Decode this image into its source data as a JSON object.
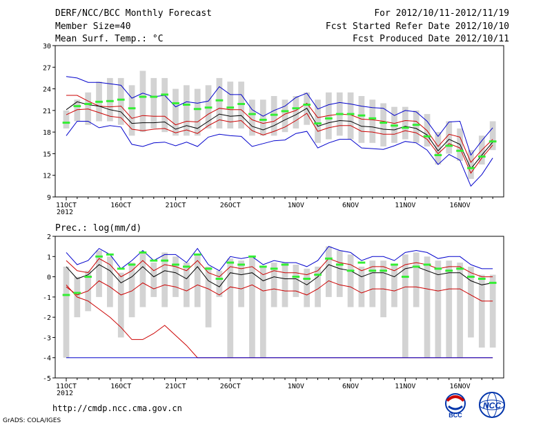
{
  "header": {
    "title": "DERF/NCC/BCC Monthly Forecast",
    "member_size": "Member Size=40",
    "variable": "Mean Surf. Temp.: °C",
    "period": "For 2012/10/11-2012/11/19",
    "fcst_started": "Fcst Started Refer Date 2012/10/10",
    "fcst_produced": "Fcst Produced Date 2012/10/11"
  },
  "footer": {
    "url": "http://cmdp.ncc.cma.gov.cn",
    "credit": "GrADS: COLA/IGES",
    "logo_bcc": "BCC",
    "logo_ncc": "NCC"
  },
  "colors": {
    "box": "#d3d3d3",
    "median": "#33ee33",
    "blue": "#0000cc",
    "red": "#cc0000",
    "black": "#000000"
  },
  "chart_data": [
    {
      "type": "line",
      "title": "Mean Surf. Temp.: °C",
      "x_tick_labels": [
        "11OCT",
        "16OCT",
        "21OCT",
        "26OCT",
        "1NOV",
        "6NOV",
        "11NOV",
        "16NOV"
      ],
      "x_tick_days": [
        0,
        5,
        10,
        15,
        21,
        26,
        31,
        36
      ],
      "year_label": "2012",
      "ylim": [
        9,
        30
      ],
      "y_ticks": [
        9,
        12,
        15,
        18,
        21,
        24,
        27,
        30
      ],
      "days": 40,
      "series": [
        {
          "name": "max",
          "color": "blue",
          "values": [
            25.7,
            25.5,
            24.9,
            24.9,
            24.7,
            24.5,
            22.7,
            23.4,
            22.9,
            23.1,
            21.5,
            22.2,
            22.0,
            22.3,
            24.3,
            23.2,
            23.2,
            21.1,
            20.2,
            21.0,
            21.6,
            22.8,
            23.4,
            21.2,
            21.8,
            22.1,
            21.9,
            21.6,
            21.4,
            21.3,
            20.3,
            21.0,
            20.8,
            19.5,
            17.4,
            19.4,
            19.5,
            14.8,
            16.8,
            18.6
          ]
        },
        {
          "name": "upper",
          "color": "red",
          "values": [
            23.1,
            23.1,
            22.3,
            21.6,
            21.5,
            21.6,
            19.9,
            20.3,
            20.2,
            20.2,
            19.0,
            19.5,
            19.4,
            20.5,
            21.3,
            21.1,
            21.1,
            19.7,
            19.2,
            19.5,
            20.5,
            21.0,
            22.0,
            20.0,
            20.3,
            20.5,
            20.4,
            19.8,
            19.7,
            19.5,
            19.2,
            19.6,
            19.5,
            18.2,
            16.0,
            17.7,
            17.3,
            13.8,
            15.5,
            17.0
          ]
        },
        {
          "name": "mean",
          "color": "black",
          "values": [
            21.1,
            22.2,
            21.8,
            21.6,
            21.1,
            20.8,
            19.2,
            19.3,
            19.3,
            19.4,
            18.4,
            18.9,
            18.5,
            19.5,
            20.5,
            20.2,
            20.3,
            18.8,
            18.3,
            18.9,
            19.7,
            20.4,
            21.3,
            18.8,
            19.3,
            19.6,
            19.5,
            18.8,
            18.7,
            18.4,
            18.3,
            18.8,
            18.5,
            17.6,
            15.4,
            17.0,
            16.3,
            12.9,
            14.8,
            16.6
          ]
        },
        {
          "name": "lower",
          "color": "red",
          "values": [
            20.4,
            21.1,
            21.2,
            20.7,
            20.2,
            20.0,
            18.4,
            18.2,
            18.4,
            18.5,
            17.9,
            18.3,
            17.8,
            18.9,
            19.7,
            19.4,
            19.6,
            18.2,
            17.6,
            18.1,
            18.7,
            19.6,
            20.6,
            18.1,
            18.6,
            18.9,
            18.9,
            18.1,
            18.0,
            17.7,
            17.7,
            18.2,
            17.9,
            17.0,
            15.0,
            16.4,
            15.8,
            12.3,
            14.4,
            16.2
          ]
        },
        {
          "name": "min",
          "color": "blue",
          "values": [
            17.5,
            19.5,
            19.5,
            18.6,
            18.9,
            18.7,
            16.3,
            16.0,
            16.5,
            16.6,
            16.1,
            16.6,
            16.0,
            17.3,
            17.7,
            17.5,
            17.4,
            16.0,
            16.4,
            16.8,
            16.9,
            17.8,
            18.1,
            15.8,
            16.5,
            17.0,
            17.0,
            15.8,
            15.7,
            15.6,
            16.1,
            16.7,
            16.5,
            15.5,
            13.5,
            14.9,
            14.1,
            10.5,
            12.1,
            14.4
          ]
        }
      ],
      "box_low": [
        18.5,
        19.5,
        19.0,
        19.5,
        19.5,
        19.0,
        17.5,
        18.0,
        18.5,
        18.0,
        17.5,
        17.5,
        17.5,
        18.5,
        18.5,
        18.5,
        18.5,
        17.5,
        17.5,
        17.5,
        18.0,
        18.5,
        19.0,
        16.5,
        17.0,
        17.5,
        17.0,
        16.5,
        16.5,
        16.0,
        16.5,
        17.0,
        16.5,
        16.0,
        13.5,
        15.0,
        14.0,
        11.5,
        13.5,
        15.5
      ],
      "box_high": [
        21.0,
        22.5,
        23.5,
        25.0,
        25.5,
        25.5,
        24.5,
        26.5,
        25.5,
        25.5,
        24.0,
        24.5,
        24.0,
        24.5,
        25.5,
        25.0,
        25.0,
        22.5,
        22.5,
        23.0,
        22.5,
        23.0,
        23.5,
        22.5,
        23.5,
        23.5,
        23.5,
        23.0,
        22.5,
        22.0,
        21.5,
        21.5,
        21.0,
        20.5,
        18.0,
        19.5,
        18.5,
        15.5,
        17.5,
        19.5
      ],
      "median": [
        19.3,
        21.6,
        21.9,
        22.2,
        22.3,
        22.5,
        21.3,
        22.9,
        22.9,
        23.2,
        22.0,
        21.8,
        21.2,
        21.4,
        22.4,
        21.4,
        21.9,
        20.5,
        19.7,
        20.4,
        20.9,
        21.3,
        21.8,
        19.2,
        19.9,
        20.5,
        20.5,
        20.3,
        19.9,
        19.3,
        18.9,
        18.6,
        19.0,
        17.4,
        14.8,
        16.1,
        15.4,
        13.0,
        14.6,
        16.7
      ]
    },
    {
      "type": "line",
      "title": "Prec.: log(mm/d)",
      "x_tick_labels": [
        "11OCT",
        "16OCT",
        "21OCT",
        "26OCT",
        "1NOV",
        "6NOV",
        "11NOV",
        "16NOV"
      ],
      "x_tick_days": [
        0,
        5,
        10,
        15,
        21,
        26,
        31,
        36
      ],
      "year_label": "2012",
      "ylim": [
        -5,
        2
      ],
      "y_ticks": [
        -5,
        -4,
        -3,
        -2,
        -1,
        0,
        1,
        2
      ],
      "days": 40,
      "series": [
        {
          "name": "max",
          "color": "blue",
          "values": [
            1.2,
            0.6,
            0.8,
            1.4,
            1.1,
            0.4,
            0.8,
            1.3,
            0.8,
            1.1,
            1.1,
            0.7,
            1.4,
            0.6,
            0.3,
            1.0,
            0.9,
            1.0,
            0.6,
            0.8,
            0.7,
            0.7,
            0.5,
            0.8,
            1.5,
            1.3,
            1.2,
            0.8,
            1.0,
            1.0,
            0.8,
            1.2,
            1.3,
            1.2,
            0.9,
            1.0,
            1.0,
            0.6,
            0.4,
            0.4
          ]
        },
        {
          "name": "upper",
          "color": "red",
          "values": [
            0.8,
            0.3,
            0.2,
            0.9,
            0.6,
            0.0,
            0.3,
            0.8,
            0.3,
            0.6,
            0.5,
            0.3,
            0.8,
            0.2,
            0.0,
            0.5,
            0.4,
            0.5,
            0.1,
            0.3,
            0.2,
            0.2,
            0.1,
            0.3,
            0.9,
            0.7,
            0.6,
            0.3,
            0.5,
            0.5,
            0.3,
            0.6,
            0.7,
            0.6,
            0.4,
            0.5,
            0.5,
            0.2,
            0.0,
            0.0
          ]
        },
        {
          "name": "mean",
          "color": "black",
          "values": [
            0.5,
            -0.1,
            0.1,
            0.6,
            0.3,
            -0.3,
            0.0,
            0.5,
            0.0,
            0.3,
            0.2,
            -0.1,
            0.5,
            -0.2,
            -0.5,
            0.2,
            0.1,
            0.2,
            -0.2,
            0.0,
            -0.1,
            -0.1,
            -0.4,
            0.0,
            0.6,
            0.4,
            0.3,
            0.0,
            0.2,
            0.2,
            0.0,
            0.4,
            0.5,
            0.3,
            0.1,
            0.2,
            0.2,
            -0.2,
            -0.4,
            -0.3
          ]
        },
        {
          "name": "lower",
          "color": "red",
          "values": [
            -0.5,
            -0.9,
            -0.7,
            -0.2,
            -0.5,
            -0.9,
            -0.7,
            -0.3,
            -0.6,
            -0.4,
            -0.5,
            -0.7,
            -0.4,
            -0.6,
            -0.9,
            -0.5,
            -0.6,
            -0.4,
            -0.7,
            -0.6,
            -0.7,
            -0.7,
            -0.9,
            -0.6,
            -0.2,
            -0.4,
            -0.5,
            -0.8,
            -0.6,
            -0.6,
            -0.7,
            -0.5,
            -0.5,
            -0.6,
            -0.7,
            -0.6,
            -0.6,
            -0.9,
            -1.2,
            -1.2
          ]
        },
        {
          "name": "low_tail",
          "color": "red",
          "values": [
            -0.4,
            -1.0,
            -1.2,
            -1.6,
            -2.0,
            -2.5,
            -3.1,
            -3.1,
            -2.8,
            -2.4,
            -2.9,
            -3.4,
            -4.0,
            -4.0,
            -4.0,
            -4.0,
            -4.0,
            -4.0,
            -4.0,
            -4.0,
            -4.0,
            -4.0,
            -4.0,
            -4.0,
            -4.0,
            -4.0,
            -4.0,
            -4.0,
            -4.0,
            -4.0,
            -4.0,
            -4.0,
            -4.0,
            -4.0,
            -4.0,
            -4.0,
            -4.0,
            -4.0,
            -4.0,
            -4.0
          ]
        },
        {
          "name": "min",
          "color": "blue",
          "values": [
            -4.0,
            -4.0,
            -4.0,
            -4.0,
            -4.0,
            -4.0,
            -4.0,
            -4.0,
            -4.0,
            -4.0,
            -4.0,
            -4.0,
            -4.0,
            -4.0,
            -4.0,
            -4.0,
            -4.0,
            -4.0,
            -4.0,
            -4.0,
            -4.0,
            -4.0,
            -4.0,
            -4.0,
            -4.0,
            -4.0,
            -4.0,
            -4.0,
            -4.0,
            -4.0,
            -4.0,
            -4.0,
            -4.0,
            -4.0,
            -4.0,
            -4.0,
            -4.0,
            -4.0,
            -4.0,
            -4.0
          ]
        }
      ],
      "box_low": [
        -4.0,
        -2.0,
        -1.7,
        -1.0,
        -1.5,
        -3.0,
        -2.0,
        -1.5,
        -1.0,
        -1.5,
        -1.0,
        -1.5,
        -1.5,
        -2.5,
        -1.0,
        -4.0,
        -1.5,
        -4.0,
        -4.0,
        -1.5,
        -1.5,
        -1.0,
        -1.5,
        -1.5,
        -1.0,
        -1.0,
        -1.5,
        -1.5,
        -1.5,
        -2.0,
        -1.5,
        -4.0,
        -1.5,
        -4.0,
        -4.0,
        -4.0,
        -4.0,
        -3.0,
        -3.5,
        -3.5
      ],
      "box_high": [
        0.5,
        0.0,
        0.3,
        1.3,
        1.0,
        0.2,
        0.7,
        1.2,
        0.7,
        1.2,
        1.0,
        0.7,
        1.1,
        0.5,
        0.3,
        0.9,
        0.8,
        1.0,
        0.5,
        0.7,
        0.7,
        0.6,
        0.4,
        0.5,
        1.5,
        1.3,
        1.1,
        0.5,
        0.8,
        0.8,
        0.6,
        1.1,
        1.2,
        1.0,
        0.8,
        0.8,
        0.7,
        0.5,
        0.1,
        0.1
      ],
      "median": [
        -0.9,
        -0.8,
        0.0,
        1.0,
        1.1,
        0.4,
        0.6,
        1.2,
        0.8,
        0.8,
        0.6,
        0.5,
        1.1,
        0.4,
        -0.1,
        0.7,
        0.6,
        1.0,
        0.5,
        0.4,
        0.6,
        0.0,
        -0.1,
        0.1,
        0.9,
        0.6,
        0.3,
        0.7,
        0.3,
        0.3,
        0.6,
        0.0,
        0.5,
        0.6,
        0.4,
        0.3,
        0.4,
        0.0,
        -0.1,
        -0.3
      ]
    }
  ]
}
